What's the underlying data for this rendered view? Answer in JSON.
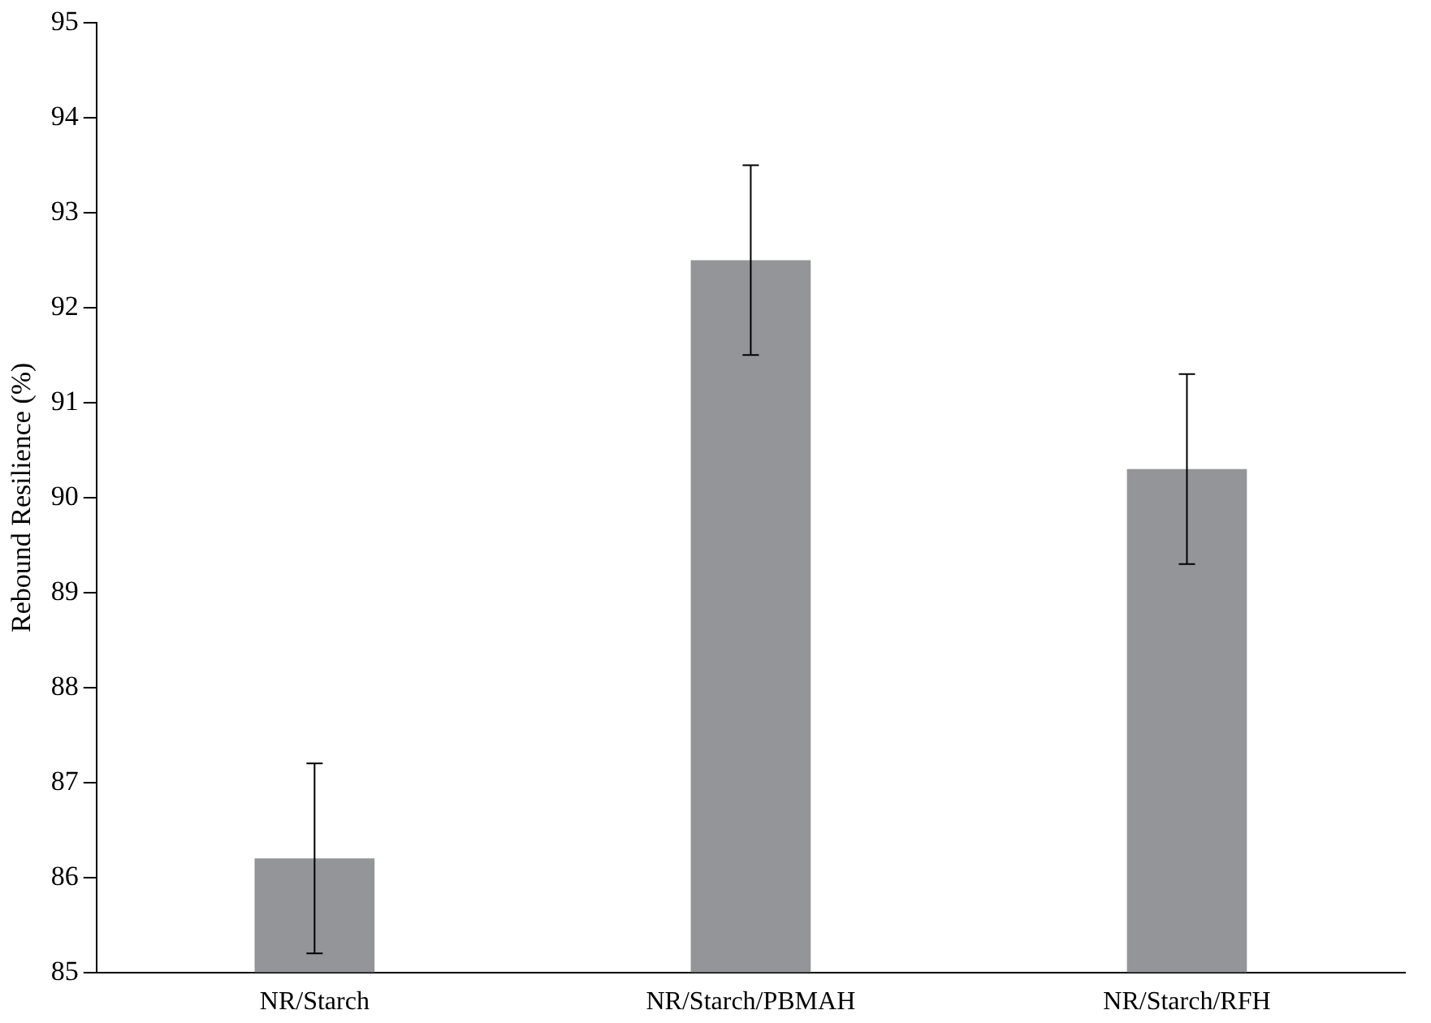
{
  "chart_data": {
    "type": "bar",
    "ylabel": "Rebound Resilience (%)",
    "categories": [
      "NR/Starch",
      "NR/Starch/PBMAH",
      "NR/Starch/RFH"
    ],
    "values": [
      86.2,
      92.5,
      90.3
    ],
    "errors": [
      1,
      1,
      1
    ],
    "color": "#939598",
    "ylim": [
      85,
      95
    ],
    "yticks": [
      85,
      86,
      87,
      88,
      89,
      90,
      91,
      92,
      93,
      94,
      95
    ],
    "grid": false,
    "legend": false
  }
}
